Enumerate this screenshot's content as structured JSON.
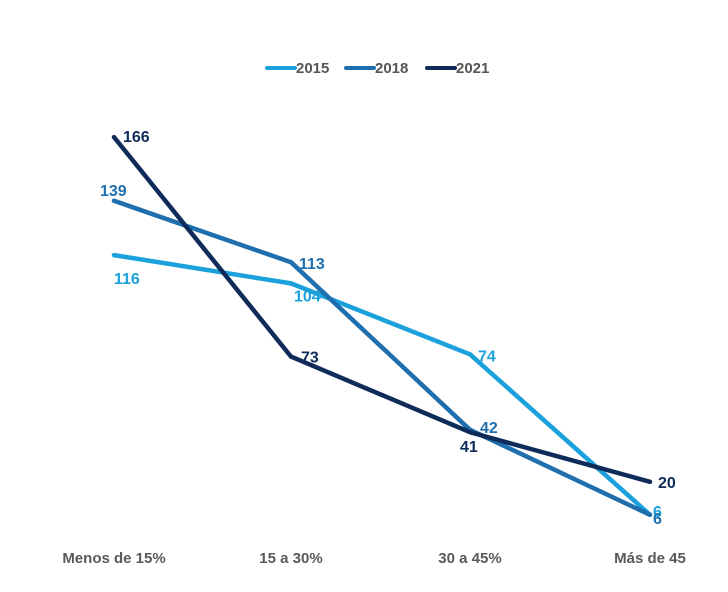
{
  "chart_data": {
    "type": "line",
    "title": "",
    "xlabel": "",
    "ylabel": "",
    "categories": [
      "Menos de 15%",
      "15 a 30%",
      "30 a 45%",
      "Más de 45"
    ],
    "ylim": [
      0,
      180
    ],
    "grid": false,
    "legend_position": "top-center",
    "series": [
      {
        "name": "2015",
        "values": [
          116,
          104,
          74,
          6
        ],
        "color": "#1BA1DC"
      },
      {
        "name": "2018",
        "values": [
          139,
          113,
          42,
          6
        ],
        "color": "#1F6FAE"
      },
      {
        "name": "2021",
        "values": [
          166,
          73,
          41,
          20
        ],
        "color": "#0E2B59"
      }
    ]
  }
}
